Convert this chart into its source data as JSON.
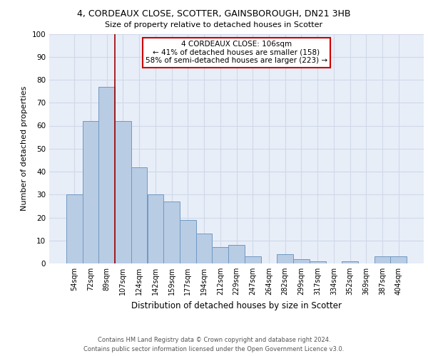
{
  "title_line1": "4, CORDEAUX CLOSE, SCOTTER, GAINSBOROUGH, DN21 3HB",
  "title_line2": "Size of property relative to detached houses in Scotter",
  "xlabel": "Distribution of detached houses by size in Scotter",
  "ylabel": "Number of detached properties",
  "categories": [
    "54sqm",
    "72sqm",
    "89sqm",
    "107sqm",
    "124sqm",
    "142sqm",
    "159sqm",
    "177sqm",
    "194sqm",
    "212sqm",
    "229sqm",
    "247sqm",
    "264sqm",
    "282sqm",
    "299sqm",
    "317sqm",
    "334sqm",
    "352sqm",
    "369sqm",
    "387sqm",
    "404sqm"
  ],
  "values": [
    30,
    62,
    77,
    62,
    42,
    30,
    27,
    19,
    13,
    7,
    8,
    3,
    0,
    4,
    2,
    1,
    0,
    1,
    0,
    3,
    3
  ],
  "bar_color": "#b8cce4",
  "bar_edge_color": "#7099c2",
  "grid_color": "#d0d8e8",
  "background_color": "#e8eef8",
  "vline_x": 2.5,
  "vline_color": "#990000",
  "annotation_text": "4 CORDEAUX CLOSE: 106sqm\n← 41% of detached houses are smaller (158)\n58% of semi-detached houses are larger (223) →",
  "annotation_box_color": "white",
  "annotation_box_edge": "#cc0000",
  "ylim": [
    0,
    100
  ],
  "yticks": [
    0,
    10,
    20,
    30,
    40,
    50,
    60,
    70,
    80,
    90,
    100
  ],
  "footer_line1": "Contains HM Land Registry data © Crown copyright and database right 2024.",
  "footer_line2": "Contains public sector information licensed under the Open Government Licence v3.0."
}
